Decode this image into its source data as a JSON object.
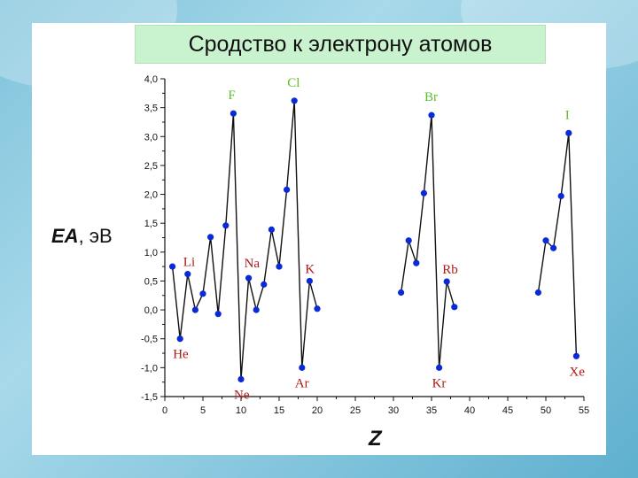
{
  "title": "Сродство к электрону атомов",
  "ylabel_main": "EA",
  "ylabel_unit": ", эВ",
  "xlabel": "Z",
  "colors": {
    "line": "#111111",
    "marker": "#0a2ad8",
    "label_green": "#5cbf2a",
    "label_red": "#b01818",
    "title_bg": "#c9f2cf"
  },
  "chart_data": {
    "type": "line",
    "xlim": [
      0,
      55
    ],
    "ylim": [
      -1.5,
      4.0
    ],
    "x_ticks": [
      "0",
      "5",
      "10",
      "15",
      "20",
      "25",
      "30",
      "35",
      "40",
      "45",
      "50",
      "55"
    ],
    "y_ticks": [
      "4,0",
      "3,5",
      "3,0",
      "2,5",
      "2,0",
      "1,5",
      "1,0",
      "0,5",
      "0,0",
      "-0,5",
      "-1,0",
      "-1,5"
    ],
    "segments": [
      [
        [
          1,
          0.75
        ],
        [
          2,
          -0.5
        ],
        [
          3,
          0.62
        ],
        [
          4,
          0.0
        ],
        [
          5,
          0.28
        ],
        [
          6,
          1.26
        ],
        [
          7,
          -0.07
        ],
        [
          8,
          1.46
        ],
        [
          9,
          3.4
        ],
        [
          10,
          -1.2
        ],
        [
          11,
          0.55
        ],
        [
          12,
          0.0
        ],
        [
          13,
          0.44
        ],
        [
          14,
          1.39
        ],
        [
          15,
          0.75
        ],
        [
          16,
          2.08
        ],
        [
          17,
          3.62
        ],
        [
          18,
          -1.0
        ],
        [
          19,
          0.5
        ],
        [
          20,
          0.02
        ]
      ],
      [
        [
          31,
          0.3
        ],
        [
          32,
          1.2
        ],
        [
          33,
          0.81
        ],
        [
          34,
          2.02
        ],
        [
          35,
          3.37
        ],
        [
          36,
          -1.0
        ],
        [
          37,
          0.49
        ],
        [
          38,
          0.05
        ]
      ],
      [
        [
          49,
          0.3
        ],
        [
          50,
          1.2
        ],
        [
          51,
          1.07
        ],
        [
          52,
          1.97
        ],
        [
          53,
          3.06
        ],
        [
          54,
          -0.8
        ]
      ]
    ],
    "element_labels": [
      {
        "text": "F",
        "x": 9,
        "y": 3.4,
        "color": "green"
      },
      {
        "text": "Cl",
        "x": 17,
        "y": 3.62,
        "color": "green"
      },
      {
        "text": "Br",
        "x": 35,
        "y": 3.37,
        "color": "green"
      },
      {
        "text": "I",
        "x": 53,
        "y": 3.06,
        "color": "green"
      },
      {
        "text": "Li",
        "x": 3,
        "y": 0.62,
        "color": "red"
      },
      {
        "text": "Na",
        "x": 11,
        "y": 0.55,
        "color": "red"
      },
      {
        "text": "K",
        "x": 19,
        "y": 0.5,
        "color": "red"
      },
      {
        "text": "Rb",
        "x": 37,
        "y": 0.49,
        "color": "red"
      },
      {
        "text": "He",
        "x": 2,
        "y": -0.5,
        "color": "red"
      },
      {
        "text": "Ne",
        "x": 10,
        "y": -1.2,
        "color": "red"
      },
      {
        "text": "Ar",
        "x": 18,
        "y": -1.0,
        "color": "red"
      },
      {
        "text": "Kr",
        "x": 36,
        "y": -1.0,
        "color": "red"
      },
      {
        "text": "Xe",
        "x": 54,
        "y": -0.8,
        "color": "red"
      }
    ]
  }
}
